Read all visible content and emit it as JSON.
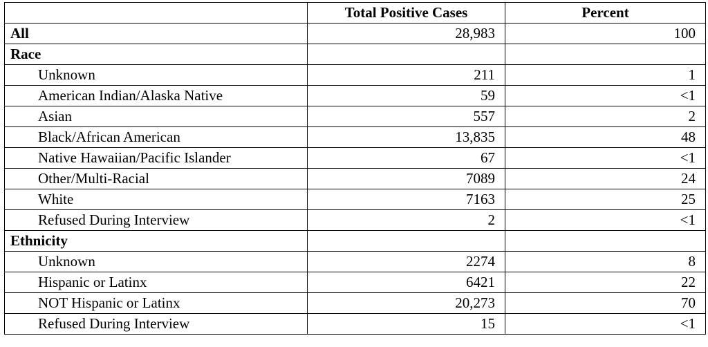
{
  "table": {
    "header": [
      "Total Positive Cases",
      "Percent"
    ],
    "rows": [
      {
        "label": "All",
        "cases": "28,983",
        "percent": "100",
        "bold": true
      },
      {
        "label": "Race",
        "bold": true
      },
      {
        "label": "Unknown",
        "cases": "211",
        "percent": "1",
        "indent": true
      },
      {
        "label": "American Indian/Alaska Native",
        "cases": "59",
        "percent": "<1",
        "indent": true
      },
      {
        "label": "Asian",
        "cases": "557",
        "percent": "2",
        "indent": true
      },
      {
        "label": "Black/African American",
        "cases": "13,835",
        "percent": "48",
        "indent": true
      },
      {
        "label": "Native Hawaiian/Pacific Islander",
        "cases": "67",
        "percent": "<1",
        "indent": true
      },
      {
        "label": "Other/Multi-Racial",
        "cases": "7089",
        "percent": "24",
        "indent": true
      },
      {
        "label": "White",
        "cases": "7163",
        "percent": "25",
        "indent": true
      },
      {
        "label": "Refused During Interview",
        "cases": "2",
        "percent": "<1",
        "indent": true
      },
      {
        "label": "Ethnicity",
        "bold": true
      },
      {
        "label": "Unknown",
        "cases": "2274",
        "percent": "8",
        "indent": true
      },
      {
        "label": "Hispanic or Latinx",
        "cases": "6421",
        "percent": "22",
        "indent": true
      },
      {
        "label": "NOT Hispanic or Latinx",
        "cases": "20,273",
        "percent": "70",
        "indent": true
      },
      {
        "label": "Refused During Interview",
        "cases": "15",
        "percent": "<1",
        "indent": true
      }
    ]
  }
}
